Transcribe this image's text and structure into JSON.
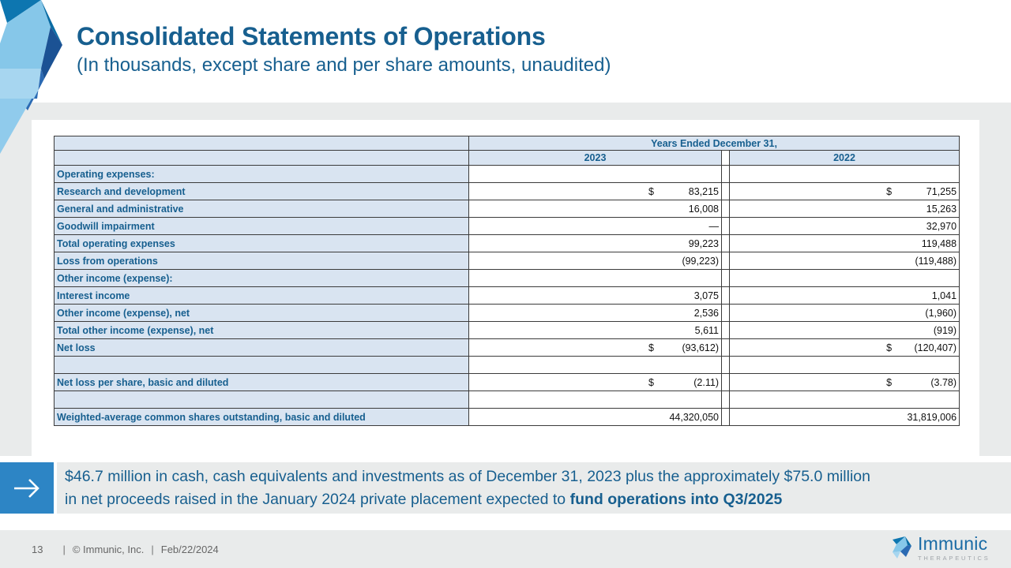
{
  "slide": {
    "title": "Consolidated Statements of Operations",
    "subtitle": "(In thousands, except share and per share amounts, unaudited)"
  },
  "table": {
    "header_span": "Years Ended December 31,",
    "col_2023": "2023",
    "col_2022": "2022",
    "rows": [
      {
        "label": "Operating expenses:",
        "indent": 0,
        "d23": "",
        "v23": "",
        "d22": "",
        "v22": ""
      },
      {
        "label": "Research and development",
        "indent": 1,
        "d23": "$",
        "v23": "83,215",
        "d22": "$",
        "v22": "71,255"
      },
      {
        "label": "General and administrative",
        "indent": 1,
        "d23": "",
        "v23": "16,008",
        "d22": "",
        "v22": "15,263"
      },
      {
        "label": "Goodwill impairment",
        "indent": 1,
        "d23": "",
        "v23": "—",
        "d22": "",
        "v22": "32,970"
      },
      {
        "label": "Total operating expenses",
        "indent": 2,
        "d23": "",
        "v23": "99,223",
        "d22": "",
        "v22": "119,488"
      },
      {
        "label": "Loss from operations",
        "indent": 0,
        "d23": "",
        "v23": "(99,223)",
        "d22": "",
        "v22": "(119,488)"
      },
      {
        "label": "Other income (expense):",
        "indent": 0,
        "d23": "",
        "v23": "",
        "d22": "",
        "v22": ""
      },
      {
        "label": "Interest income",
        "indent": 1,
        "d23": "",
        "v23": "3,075",
        "d22": "",
        "v22": "1,041"
      },
      {
        "label": "Other income (expense), net",
        "indent": 1,
        "d23": "",
        "v23": "2,536",
        "d22": "",
        "v22": "(1,960)"
      },
      {
        "label": "Total other income (expense), net",
        "indent": 0,
        "d23": "",
        "v23": "5,611",
        "d22": "",
        "v22": "(919)"
      },
      {
        "label": "Net loss",
        "indent": 0,
        "d23": "$",
        "v23": "(93,612)",
        "d22": "$",
        "v22": "(120,407)"
      },
      {
        "label": "",
        "indent": 0,
        "d23": "",
        "v23": "",
        "d22": "",
        "v22": ""
      },
      {
        "label": "Net loss per share, basic and diluted",
        "indent": 0,
        "d23": "$",
        "v23": "(2.11)",
        "d22": "$",
        "v22": "(3.78)"
      },
      {
        "label": "",
        "indent": 0,
        "d23": "",
        "v23": "",
        "d22": "",
        "v22": ""
      },
      {
        "label": "Weighted-average common shares outstanding, basic and diluted",
        "indent": 0,
        "d23": "",
        "v23": "44,320,050",
        "d22": "",
        "v22": "31,819,006"
      }
    ]
  },
  "callout": {
    "line1": "$46.7 million in cash, cash equivalents and investments as of December 31, 2023 plus the approximately $75.0 million",
    "line2_normal": "in net proceeds raised in the January 2024 private placement expected to ",
    "line2_bold": "fund operations into Q3/2025"
  },
  "footer": {
    "page": "13",
    "sep1": "|",
    "copyright": "© Immunic, Inc.",
    "sep2": "|",
    "date": "Feb/22/2024",
    "logo_name": "Immunic",
    "logo_sub": "THERAPEUTICS"
  },
  "colors": {
    "heading_text": "#175f8f",
    "accent_blue": "#2d85c5",
    "table_header_fill": "#d9e4f1",
    "band_gray": "#e9ebeb",
    "number_text": "#111111",
    "table_border": "#3b3b3b",
    "footer_text": "#666666",
    "logo_blue": "#1a6ba5",
    "logo_gray": "#a0a5aa"
  }
}
